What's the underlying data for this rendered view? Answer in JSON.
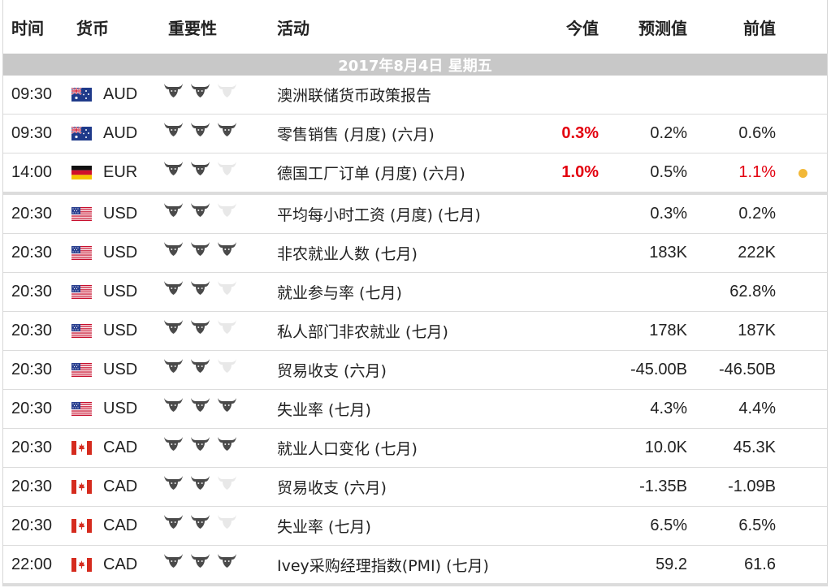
{
  "header": {
    "time": "时间",
    "currency": "货币",
    "importance": "重要性",
    "event": "活动",
    "actual": "今值",
    "forecast": "预测值",
    "previous": "前值"
  },
  "date_label": "2017年8月4日  星期五",
  "colors": {
    "date_bar": "#c8c8c8",
    "bull_on": "#4a4a4a",
    "bull_off": "#e8e8e8",
    "red": "#e3000f",
    "dot": "#f2b838"
  },
  "rows": [
    {
      "time": "09:30",
      "flag": "au-flag-icon",
      "currency": "AUD",
      "importance": 2,
      "event": "澳洲联储货币政策报告",
      "actual": "",
      "forecast": "",
      "previous": "",
      "actual_red": false,
      "previous_red": false,
      "dot": false
    },
    {
      "time": "09:30",
      "flag": "au-flag-icon",
      "currency": "AUD",
      "importance": 3,
      "event": "零售销售 (月度) (六月)",
      "actual": "0.3%",
      "forecast": "0.2%",
      "previous": "0.6%",
      "actual_red": true,
      "previous_red": false,
      "dot": false
    },
    {
      "time": "14:00",
      "flag": "de-flag-icon",
      "currency": "EUR",
      "importance": 2,
      "event": "德国工厂订单 (月度) (六月)",
      "actual": "1.0%",
      "forecast": "0.5%",
      "previous": "1.1%",
      "actual_red": true,
      "previous_red": true,
      "dot": true
    },
    {
      "time": "20:30",
      "flag": "us-flag-icon",
      "currency": "USD",
      "importance": 2,
      "event": "平均每小时工资 (月度) (七月)",
      "actual": "",
      "forecast": "0.3%",
      "previous": "0.2%",
      "actual_red": false,
      "previous_red": false,
      "dot": false
    },
    {
      "time": "20:30",
      "flag": "us-flag-icon",
      "currency": "USD",
      "importance": 3,
      "event": "非农就业人数 (七月)",
      "actual": "",
      "forecast": "183K",
      "previous": "222K",
      "actual_red": false,
      "previous_red": false,
      "dot": false
    },
    {
      "time": "20:30",
      "flag": "us-flag-icon",
      "currency": "USD",
      "importance": 2,
      "event": "就业参与率 (七月)",
      "actual": "",
      "forecast": "",
      "previous": "62.8%",
      "actual_red": false,
      "previous_red": false,
      "dot": false
    },
    {
      "time": "20:30",
      "flag": "us-flag-icon",
      "currency": "USD",
      "importance": 2,
      "event": "私人部门非农就业 (七月)",
      "actual": "",
      "forecast": "178K",
      "previous": "187K",
      "actual_red": false,
      "previous_red": false,
      "dot": false
    },
    {
      "time": "20:30",
      "flag": "us-flag-icon",
      "currency": "USD",
      "importance": 2,
      "event": "贸易收支 (六月)",
      "actual": "",
      "forecast": "-45.00B",
      "previous": "-46.50B",
      "actual_red": false,
      "previous_red": false,
      "dot": false
    },
    {
      "time": "20:30",
      "flag": "us-flag-icon",
      "currency": "USD",
      "importance": 3,
      "event": "失业率 (七月)",
      "actual": "",
      "forecast": "4.3%",
      "previous": "4.4%",
      "actual_red": false,
      "previous_red": false,
      "dot": false
    },
    {
      "time": "20:30",
      "flag": "ca-flag-icon",
      "currency": "CAD",
      "importance": 3,
      "event": "就业人口变化 (七月)",
      "actual": "",
      "forecast": "10.0K",
      "previous": "45.3K",
      "actual_red": false,
      "previous_red": false,
      "dot": false
    },
    {
      "time": "20:30",
      "flag": "ca-flag-icon",
      "currency": "CAD",
      "importance": 2,
      "event": "贸易收支 (六月)",
      "actual": "",
      "forecast": "-1.35B",
      "previous": "-1.09B",
      "actual_red": false,
      "previous_red": false,
      "dot": false
    },
    {
      "time": "20:30",
      "flag": "ca-flag-icon",
      "currency": "CAD",
      "importance": 2,
      "event": "失业率 (七月)",
      "actual": "",
      "forecast": "6.5%",
      "previous": "6.5%",
      "actual_red": false,
      "previous_red": false,
      "dot": false
    },
    {
      "time": "22:00",
      "flag": "ca-flag-icon",
      "currency": "CAD",
      "importance": 3,
      "event": "Ivey采购经理指数(PMI) (七月)",
      "actual": "",
      "forecast": "59.2",
      "previous": "61.6",
      "actual_red": false,
      "previous_red": false,
      "dot": false
    }
  ]
}
